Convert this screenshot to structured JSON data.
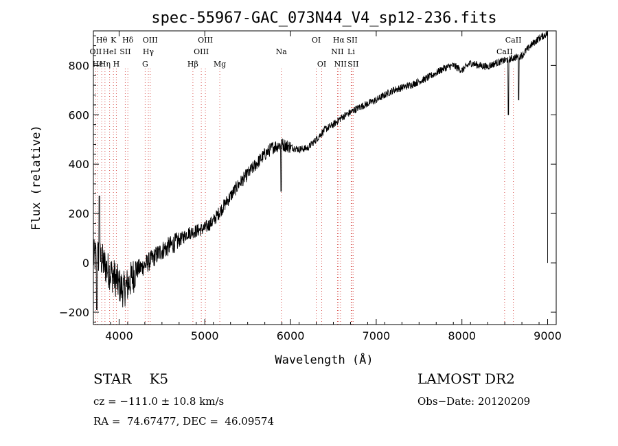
{
  "chart_data": {
    "type": "line",
    "title": "spec-55967-GAC_073N44_V4_sp12-236.fits",
    "xlabel": "Wavelength (Å)",
    "ylabel": "Flux (relative)",
    "xlim": [
      3700,
      9100
    ],
    "ylim": [
      -250,
      940
    ],
    "xticks": [
      4000,
      5000,
      6000,
      7000,
      8000,
      9000
    ],
    "yticks": [
      -200,
      0,
      200,
      400,
      600,
      800
    ],
    "grid": false,
    "series": [
      {
        "name": "flux",
        "x": [
          3700,
          3750,
          3800,
          3850,
          3900,
          3950,
          4000,
          4050,
          4100,
          4150,
          4200,
          4300,
          4400,
          4500,
          4600,
          4700,
          4800,
          4900,
          5000,
          5100,
          5200,
          5300,
          5400,
          5500,
          5600,
          5700,
          5800,
          5900,
          6000,
          6100,
          6200,
          6300,
          6400,
          6500,
          6600,
          6700,
          6800,
          7000,
          7200,
          7400,
          7600,
          7800,
          7900,
          8000,
          8100,
          8200,
          8300,
          8400,
          8500,
          8600,
          8700,
          8800,
          8900,
          9000
        ],
        "y": [
          20,
          30,
          10,
          -20,
          -40,
          -60,
          -90,
          -110,
          -90,
          -60,
          -30,
          -10,
          20,
          50,
          70,
          90,
          120,
          130,
          140,
          170,
          220,
          270,
          320,
          360,
          400,
          440,
          470,
          480,
          470,
          460,
          465,
          500,
          540,
          560,
          590,
          610,
          630,
          660,
          700,
          720,
          750,
          790,
          800,
          780,
          810,
          800,
          795,
          810,
          820,
          830,
          840,
          880,
          910,
          930
        ]
      }
    ],
    "absorption_dips": [
      {
        "x": 3740,
        "y": -190
      },
      {
        "x": 3770,
        "y": 270
      },
      {
        "x": 5890,
        "y": 290
      },
      {
        "x": 8542,
        "y": 600
      },
      {
        "x": 8662,
        "y": 660
      }
    ],
    "line_markers": {
      "top_row": [
        {
          "label": "Hθ",
          "x": 3797
        },
        {
          "label": "K",
          "x": 3934
        },
        {
          "label": "Hδ",
          "x": 4102
        },
        {
          "label": "OIII",
          "x": 4363
        },
        {
          "label": "OIII",
          "x": 5007
        },
        {
          "label": "OI",
          "x": 6300
        },
        {
          "label": "Hα",
          "x": 6563
        },
        {
          "label": "SII",
          "x": 6717
        },
        {
          "label": "CaII",
          "x": 8600
        }
      ],
      "middle_row": [
        {
          "label": "OII",
          "x": 3727
        },
        {
          "label": "HeI",
          "x": 3889
        },
        {
          "label": "SII",
          "x": 4072
        },
        {
          "label": "Hγ",
          "x": 4341
        },
        {
          "label": "OIII",
          "x": 4959
        },
        {
          "label": "Na",
          "x": 5893
        },
        {
          "label": "NII",
          "x": 6548
        },
        {
          "label": "Li",
          "x": 6708
        },
        {
          "label": "CaII",
          "x": 8498
        }
      ],
      "bottom_row": [
        {
          "label": "Hε",
          "x": 3750
        },
        {
          "label": "Hη",
          "x": 3835
        },
        {
          "label": "H",
          "x": 3968
        },
        {
          "label": "G",
          "x": 4304
        },
        {
          "label": "Hβ",
          "x": 4861
        },
        {
          "label": "Mg",
          "x": 5175
        },
        {
          "label": "OI",
          "x": 6364
        },
        {
          "label": "NII",
          "x": 6583
        },
        {
          "label": "SII",
          "x": 6731
        }
      ]
    },
    "marker_style": {
      "color": "#d9534f"
    }
  },
  "footer": {
    "object_class": "STAR",
    "subclass": "K5",
    "survey": "LAMOST DR2",
    "cz": "cz = −111.0 ± 10.8 km/s",
    "obs_date": "Obs−Date: 20120209",
    "radec": "RA =  74.67477, DEC =  46.09574"
  }
}
